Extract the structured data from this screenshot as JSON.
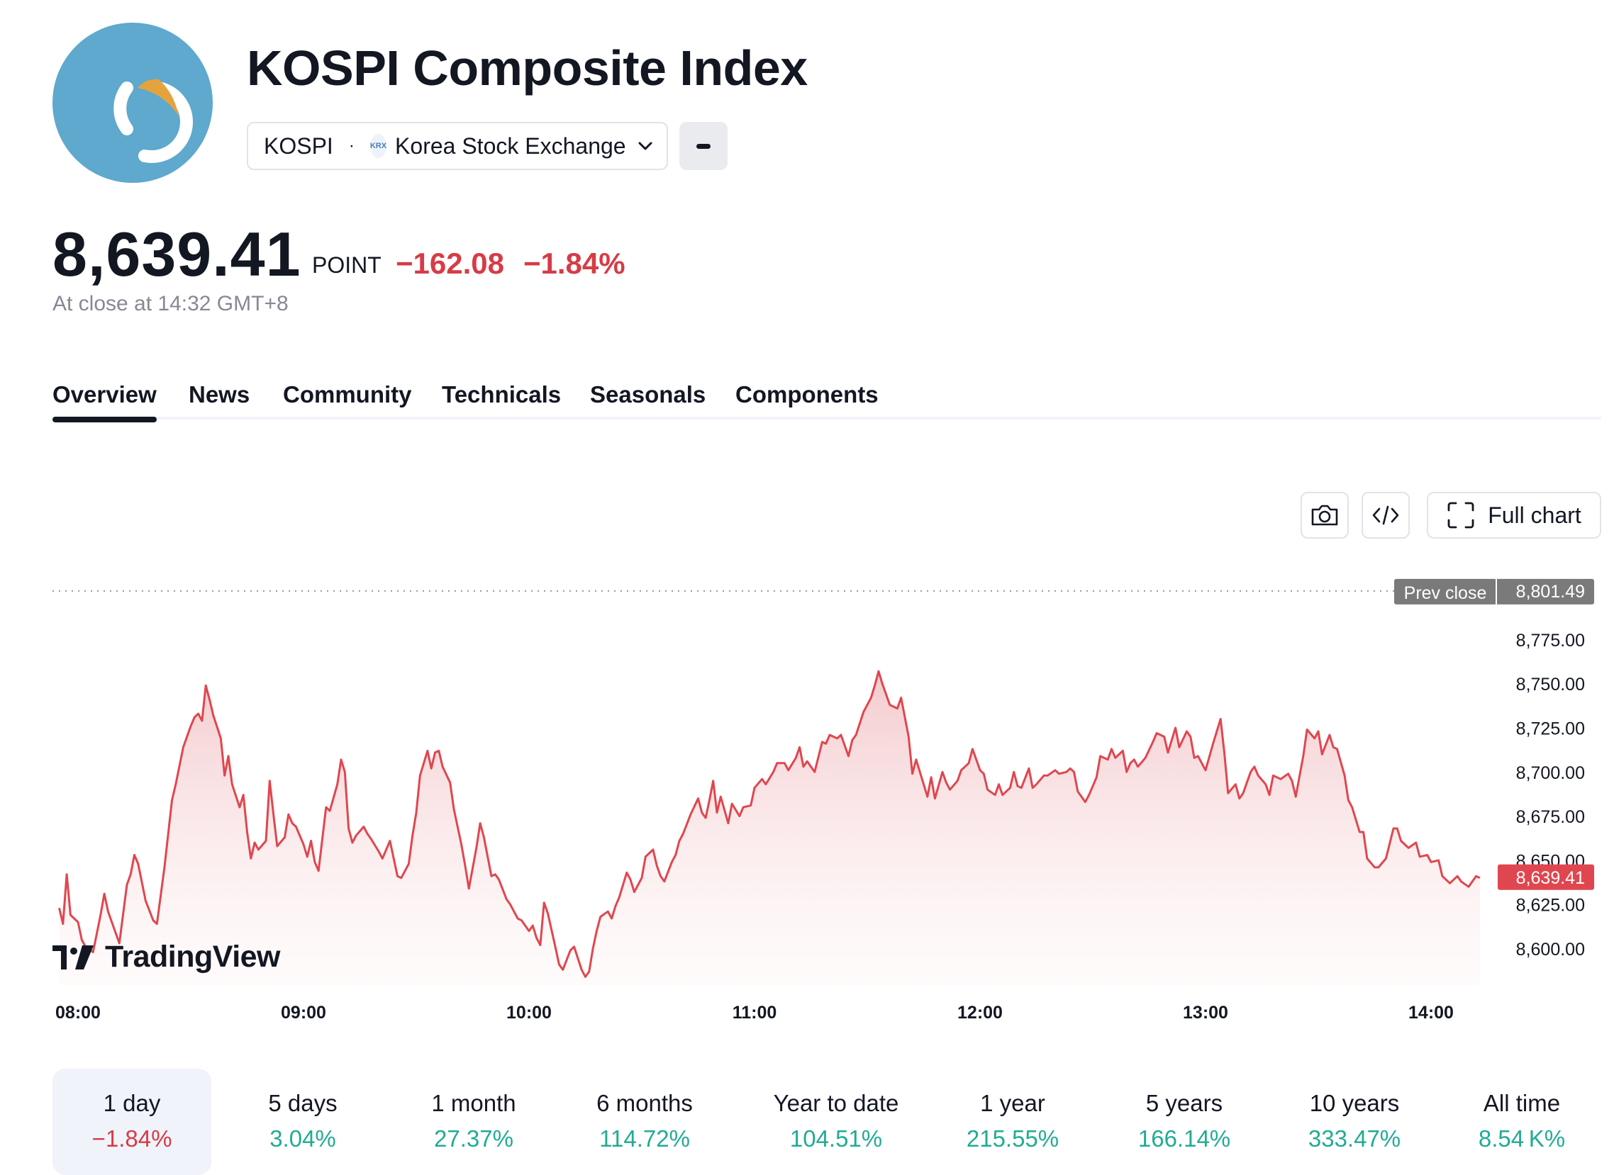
{
  "header": {
    "title": "KOSPI Composite Index",
    "symbol": "KOSPI",
    "separator": "·",
    "exchange_icon": "KRX",
    "exchange": "Korea Stock Exchange"
  },
  "quote": {
    "price": "8,639.41",
    "unit": "POINT",
    "change": "−162.08",
    "change_pct": "−1.84%",
    "close_time": "At close at 14:32 GMT+8"
  },
  "tabs": [
    {
      "label": "Overview"
    },
    {
      "label": "News"
    },
    {
      "label": "Community"
    },
    {
      "label": "Technicals"
    },
    {
      "label": "Seasonals"
    },
    {
      "label": "Components"
    }
  ],
  "toolbar": {
    "full_chart_label": "Full chart"
  },
  "branding": {
    "tv_label": "TradingView"
  },
  "colors": {
    "line": "#e0464f",
    "prev_close_badge": "#7a7a7a",
    "last_badge": "#e0464f",
    "positive": "#22ab94",
    "negative": "#d63c46",
    "logo_bg": "#5ea9cd",
    "logo_accent": "#e5a33d"
  },
  "periods": [
    {
      "label": "1 day",
      "value": "−1.84%",
      "dir": "down"
    },
    {
      "label": "5 days",
      "value": "3.04%",
      "dir": "up"
    },
    {
      "label": "1 month",
      "value": "27.37%",
      "dir": "up"
    },
    {
      "label": "6 months",
      "value": "114.72%",
      "dir": "up"
    },
    {
      "label": "Year to date",
      "value": "104.51%",
      "dir": "up"
    },
    {
      "label": "1 year",
      "value": "215.55%",
      "dir": "up"
    },
    {
      "label": "5 years",
      "value": "166.14%",
      "dir": "up"
    },
    {
      "label": "10 years",
      "value": "333.47%",
      "dir": "up"
    },
    {
      "label": "All time",
      "value": "8.54 K%",
      "dir": "up"
    }
  ],
  "chart_data": {
    "type": "area",
    "x_ticks": [
      "08:00",
      "09:00",
      "10:00",
      "11:00",
      "12:00",
      "13:00",
      "14:00"
    ],
    "y_ticks": [
      "8,600.00",
      "8,625.00",
      "8,650.00",
      "8,675.00",
      "8,700.00",
      "8,725.00",
      "8,750.00",
      "8,775.00"
    ],
    "y_range": [
      8580,
      8806
    ],
    "time_range": [
      "07:55",
      "14:32"
    ],
    "prev_close": {
      "label": "Prev close",
      "value": 8801.49,
      "value_text": "8,801.49"
    },
    "last": {
      "value": 8639.41,
      "value_text": "8,639.41"
    },
    "series": [
      {
        "points": [
          [
            "07:55",
            8622
          ],
          [
            "07:56",
            8613
          ],
          [
            "07:57",
            8641
          ],
          [
            "07:58",
            8618
          ],
          [
            "08:00",
            8614
          ],
          [
            "08:01",
            8604
          ],
          [
            "08:02",
            8600
          ],
          [
            "08:04",
            8597
          ],
          [
            "08:06",
            8618
          ],
          [
            "08:07",
            8630
          ],
          [
            "08:08",
            8620
          ],
          [
            "08:10",
            8608
          ],
          [
            "08:11",
            8602
          ],
          [
            "08:13",
            8635
          ],
          [
            "08:14",
            8641
          ],
          [
            "08:15",
            8652
          ],
          [
            "08:16",
            8647
          ],
          [
            "08:18",
            8626
          ],
          [
            "08:20",
            8615
          ],
          [
            "08:21",
            8613
          ],
          [
            "08:23",
            8645
          ],
          [
            "08:25",
            8683
          ],
          [
            "08:26",
            8692
          ],
          [
            "08:28",
            8713
          ],
          [
            "08:30",
            8725
          ],
          [
            "08:31",
            8730
          ],
          [
            "08:32",
            8732
          ],
          [
            "08:33",
            8728
          ],
          [
            "08:34",
            8748
          ],
          [
            "08:35",
            8740
          ],
          [
            "08:36",
            8731
          ],
          [
            "08:38",
            8718
          ],
          [
            "08:39",
            8697
          ],
          [
            "08:40",
            8708
          ],
          [
            "08:41",
            8692
          ],
          [
            "08:43",
            8679
          ],
          [
            "08:44",
            8686
          ],
          [
            "08:45",
            8665
          ],
          [
            "08:46",
            8650
          ],
          [
            "08:47",
            8659
          ],
          [
            "08:48",
            8655
          ],
          [
            "08:50",
            8660
          ],
          [
            "08:51",
            8694
          ],
          [
            "08:52",
            8675
          ],
          [
            "08:53",
            8657
          ],
          [
            "08:55",
            8662
          ],
          [
            "08:56",
            8675
          ],
          [
            "08:57",
            8670
          ],
          [
            "08:58",
            8668
          ],
          [
            "09:00",
            8658
          ],
          [
            "09:01",
            8651
          ],
          [
            "09:02",
            8660
          ],
          [
            "09:03",
            8648
          ],
          [
            "09:04",
            8643
          ],
          [
            "09:06",
            8679
          ],
          [
            "09:07",
            8677
          ],
          [
            "09:09",
            8692
          ],
          [
            "09:10",
            8706
          ],
          [
            "09:11",
            8699
          ],
          [
            "09:12",
            8667
          ],
          [
            "09:13",
            8659
          ],
          [
            "09:14",
            8663
          ],
          [
            "09:16",
            8668
          ],
          [
            "09:17",
            8664
          ],
          [
            "09:18",
            8661
          ],
          [
            "09:20",
            8654
          ],
          [
            "09:21",
            8650
          ],
          [
            "09:23",
            8660
          ],
          [
            "09:25",
            8640
          ],
          [
            "09:26",
            8639
          ],
          [
            "09:28",
            8647
          ],
          [
            "09:29",
            8663
          ],
          [
            "09:30",
            8676
          ],
          [
            "09:31",
            8697
          ],
          [
            "09:33",
            8711
          ],
          [
            "09:34",
            8701
          ],
          [
            "09:35",
            8710
          ],
          [
            "09:36",
            8711
          ],
          [
            "09:37",
            8702
          ],
          [
            "09:39",
            8693
          ],
          [
            "09:40",
            8678
          ],
          [
            "09:42",
            8658
          ],
          [
            "09:43",
            8646
          ],
          [
            "09:44",
            8633
          ],
          [
            "09:46",
            8656
          ],
          [
            "09:47",
            8670
          ],
          [
            "09:48",
            8662
          ],
          [
            "09:50",
            8640
          ],
          [
            "09:51",
            8641
          ],
          [
            "09:52",
            8638
          ],
          [
            "09:54",
            8627
          ],
          [
            "09:55",
            8624
          ],
          [
            "09:57",
            8616
          ],
          [
            "09:58",
            8615
          ],
          [
            "10:00",
            8609
          ],
          [
            "10:01",
            8612
          ],
          [
            "10:02",
            8605
          ],
          [
            "10:03",
            8601
          ],
          [
            "10:04",
            8625
          ],
          [
            "10:05",
            8619
          ],
          [
            "10:07",
            8600
          ],
          [
            "10:08",
            8590
          ],
          [
            "10:09",
            8587
          ],
          [
            "10:11",
            8598
          ],
          [
            "10:12",
            8600
          ],
          [
            "10:14",
            8587
          ],
          [
            "10:15",
            8583
          ],
          [
            "10:16",
            8586
          ],
          [
            "10:17",
            8599
          ],
          [
            "10:18",
            8609
          ],
          [
            "10:19",
            8617
          ],
          [
            "10:21",
            8620
          ],
          [
            "10:22",
            8616
          ],
          [
            "10:23",
            8623
          ],
          [
            "10:24",
            8628
          ],
          [
            "10:25",
            8635
          ],
          [
            "10:26",
            8642
          ],
          [
            "10:27",
            8638
          ],
          [
            "10:28",
            8631
          ],
          [
            "10:30",
            8639
          ],
          [
            "10:31",
            8651
          ],
          [
            "10:33",
            8655
          ],
          [
            "10:34",
            8646
          ],
          [
            "10:35",
            8640
          ],
          [
            "10:36",
            8637
          ],
          [
            "10:38",
            8648
          ],
          [
            "10:39",
            8652
          ],
          [
            "10:40",
            8660
          ],
          [
            "10:41",
            8664
          ],
          [
            "10:43",
            8675
          ],
          [
            "10:45",
            8684
          ],
          [
            "10:46",
            8676
          ],
          [
            "10:47",
            8673
          ],
          [
            "10:48",
            8683
          ],
          [
            "10:49",
            8694
          ],
          [
            "10:50",
            8676
          ],
          [
            "10:51",
            8685
          ],
          [
            "10:53",
            8670
          ],
          [
            "10:54",
            8681
          ],
          [
            "10:56",
            8674
          ],
          [
            "10:57",
            8679
          ],
          [
            "10:59",
            8680
          ],
          [
            "11:00",
            8690
          ],
          [
            "11:02",
            8695
          ],
          [
            "11:03",
            8692
          ],
          [
            "11:05",
            8699
          ],
          [
            "11:06",
            8704
          ],
          [
            "11:08",
            8704
          ],
          [
            "11:09",
            8700
          ],
          [
            "11:11",
            8707
          ],
          [
            "11:12",
            8713
          ],
          [
            "11:13",
            8702
          ],
          [
            "11:14",
            8705
          ],
          [
            "11:16",
            8699
          ],
          [
            "11:18",
            8716
          ],
          [
            "11:19",
            8715
          ],
          [
            "11:20",
            8720
          ],
          [
            "11:22",
            8718
          ],
          [
            "11:23",
            8720
          ],
          [
            "11:25",
            8708
          ],
          [
            "11:26",
            8717
          ],
          [
            "11:27",
            8720
          ],
          [
            "11:29",
            8733
          ],
          [
            "11:31",
            8741
          ],
          [
            "11:32",
            8748
          ],
          [
            "11:33",
            8756
          ],
          [
            "11:34",
            8749
          ],
          [
            "11:36",
            8737
          ],
          [
            "11:38",
            8735
          ],
          [
            "11:39",
            8741
          ],
          [
            "11:41",
            8719
          ],
          [
            "11:42",
            8698
          ],
          [
            "11:43",
            8706
          ],
          [
            "11:45",
            8692
          ],
          [
            "11:46",
            8685
          ],
          [
            "11:47",
            8696
          ],
          [
            "11:48",
            8684
          ],
          [
            "11:50",
            8699
          ],
          [
            "11:51",
            8693
          ],
          [
            "11:52",
            8689
          ],
          [
            "11:54",
            8694
          ],
          [
            "11:55",
            8700
          ],
          [
            "11:57",
            8704
          ],
          [
            "11:58",
            8712
          ],
          [
            "12:00",
            8700
          ],
          [
            "12:01",
            8698
          ],
          [
            "12:02",
            8689
          ],
          [
            "12:04",
            8686
          ],
          [
            "12:05",
            8692
          ],
          [
            "12:06",
            8686
          ],
          [
            "12:08",
            8690
          ],
          [
            "12:09",
            8699
          ],
          [
            "12:10",
            8691
          ],
          [
            "12:11",
            8690
          ],
          [
            "12:13",
            8701
          ],
          [
            "12:14",
            8690
          ],
          [
            "12:15",
            8692
          ],
          [
            "12:17",
            8697
          ],
          [
            "12:18",
            8697
          ],
          [
            "12:20",
            8700
          ],
          [
            "12:21",
            8698
          ],
          [
            "12:23",
            8699
          ],
          [
            "12:24",
            8701
          ],
          [
            "12:25",
            8699
          ],
          [
            "12:26",
            8688
          ],
          [
            "12:28",
            8682
          ],
          [
            "12:29",
            8686
          ],
          [
            "12:31",
            8696
          ],
          [
            "12:32",
            8708
          ],
          [
            "12:34",
            8706
          ],
          [
            "12:35",
            8712
          ],
          [
            "12:36",
            8707
          ],
          [
            "12:38",
            8711
          ],
          [
            "12:39",
            8699
          ],
          [
            "12:40",
            8704
          ],
          [
            "12:41",
            8706
          ],
          [
            "12:42",
            8702
          ],
          [
            "12:44",
            8707
          ],
          [
            "12:46",
            8716
          ],
          [
            "12:47",
            8721
          ],
          [
            "12:49",
            8719
          ],
          [
            "12:50",
            8710
          ],
          [
            "12:52",
            8724
          ],
          [
            "12:53",
            8713
          ],
          [
            "12:55",
            8722
          ],
          [
            "12:56",
            8719
          ],
          [
            "12:57",
            8707
          ],
          [
            "12:58",
            8708
          ],
          [
            "13:00",
            8700
          ],
          [
            "13:02",
            8715
          ],
          [
            "13:04",
            8729
          ],
          [
            "13:05",
            8710
          ],
          [
            "13:06",
            8687
          ],
          [
            "13:08",
            8692
          ],
          [
            "13:09",
            8684
          ],
          [
            "13:10",
            8687
          ],
          [
            "13:12",
            8699
          ],
          [
            "13:13",
            8702
          ],
          [
            "13:14",
            8697
          ],
          [
            "13:16",
            8692
          ],
          [
            "13:17",
            8686
          ],
          [
            "13:18",
            8697
          ],
          [
            "13:20",
            8695
          ],
          [
            "13:22",
            8698
          ],
          [
            "13:23",
            8694
          ],
          [
            "13:24",
            8685
          ],
          [
            "13:26",
            8708
          ],
          [
            "13:27",
            8723
          ],
          [
            "13:29",
            8718
          ],
          [
            "13:30",
            8722
          ],
          [
            "13:31",
            8709
          ],
          [
            "13:33",
            8720
          ],
          [
            "13:34",
            8713
          ],
          [
            "13:35",
            8712
          ],
          [
            "13:37",
            8697
          ],
          [
            "13:38",
            8683
          ],
          [
            "13:39",
            8679
          ],
          [
            "13:41",
            8665
          ],
          [
            "13:42",
            8665
          ],
          [
            "13:43",
            8650
          ],
          [
            "13:45",
            8645
          ],
          [
            "13:46",
            8645
          ],
          [
            "13:48",
            8650
          ],
          [
            "13:50",
            8667
          ],
          [
            "13:51",
            8667
          ],
          [
            "13:52",
            8660
          ],
          [
            "13:54",
            8656
          ],
          [
            "13:56",
            8659
          ],
          [
            "13:57",
            8651
          ],
          [
            "13:59",
            8652
          ],
          [
            "14:00",
            8648
          ],
          [
            "14:02",
            8649
          ],
          [
            "14:03",
            8640
          ],
          [
            "14:05",
            8636
          ],
          [
            "14:07",
            8640
          ],
          [
            "14:08",
            8637
          ],
          [
            "14:10",
            8634
          ],
          [
            "14:12",
            8640
          ],
          [
            "14:13",
            8639
          ]
        ]
      }
    ]
  }
}
